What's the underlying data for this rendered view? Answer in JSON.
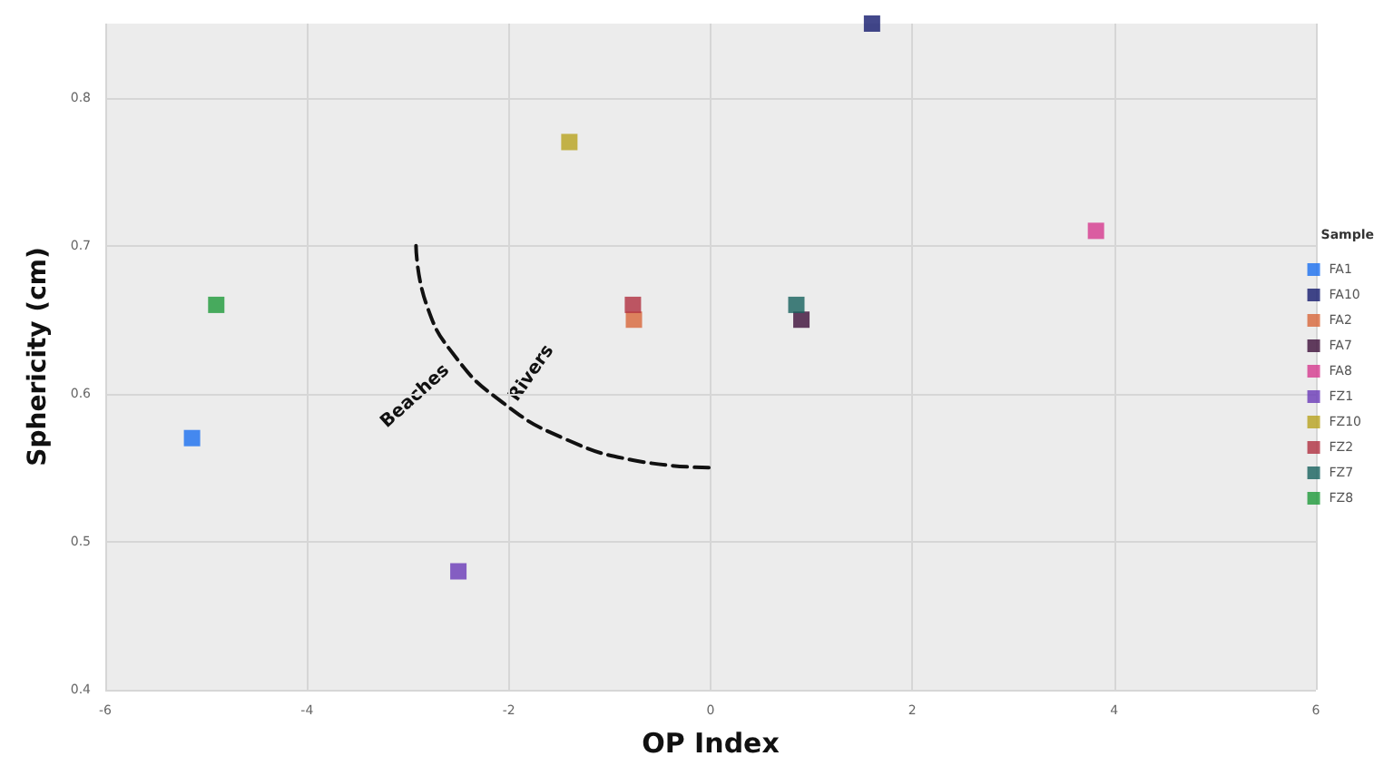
{
  "chart_data": {
    "type": "scatter",
    "xlabel": "OP Index",
    "ylabel": "Sphericity (cm)",
    "legend_title": "Sample",
    "xlim": [
      -6,
      6
    ],
    "xticks": [
      -6,
      -4,
      -2,
      0,
      2,
      4,
      6
    ],
    "ylim": [
      0.4,
      0.85
    ],
    "yticks": [
      0.4,
      0.5,
      0.6,
      0.7,
      0.8
    ],
    "grid": true,
    "legend": "right",
    "marker": "square",
    "series": [
      {
        "name": "FA1",
        "color": "#1a6ff0",
        "x": [
          -5.14
        ],
        "values": [
          0.57
        ]
      },
      {
        "name": "FA10",
        "color": "#141a6e",
        "x": [
          1.6
        ],
        "values": [
          0.85
        ]
      },
      {
        "name": "FA2",
        "color": "#d8663a",
        "x": [
          -0.76
        ],
        "values": [
          0.65
        ]
      },
      {
        "name": "FA7",
        "color": "#3d0f3a",
        "x": [
          0.9
        ],
        "values": [
          0.65
        ]
      },
      {
        "name": "FA8",
        "color": "#d63a8e",
        "x": [
          3.82
        ],
        "values": [
          0.71
        ]
      },
      {
        "name": "FZ1",
        "color": "#6a3ab8",
        "x": [
          -2.5
        ],
        "values": [
          0.48
        ]
      },
      {
        "name": "FZ10",
        "color": "#b8a21e",
        "x": [
          -1.4
        ],
        "values": [
          0.77
        ]
      },
      {
        "name": "FZ2",
        "color": "#b03040",
        "x": [
          -0.77
        ],
        "values": [
          0.66
        ]
      },
      {
        "name": "FZ7",
        "color": "#17625e",
        "x": [
          0.85
        ],
        "values": [
          0.66
        ]
      },
      {
        "name": "FZ8",
        "color": "#1e9a3a",
        "x": [
          -4.9
        ],
        "values": [
          0.66
        ]
      },
      {
        "type": "line",
        "color": "#111111",
        "line_style": "dashed",
        "marker": "none",
        "x": [
          -2.92,
          -2.82,
          -2.53,
          -2.06,
          -1.46,
          -0.76,
          0
        ],
        "values": [
          0.7,
          0.661,
          0.625,
          0.594,
          0.57,
          0.555,
          0.55
        ]
      }
    ],
    "annotations": [
      "Rivers",
      "Beaches"
    ]
  }
}
